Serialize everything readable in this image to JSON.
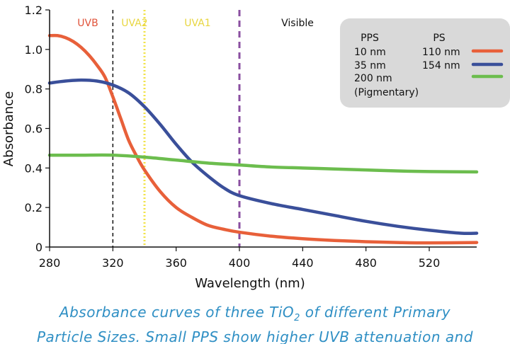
{
  "chart_data": {
    "type": "line",
    "xlabel": "Wavelength (nm)",
    "ylabel": "Absorbance",
    "xlim": [
      280,
      550
    ],
    "ylim": [
      0,
      1.2
    ],
    "xticks": [
      280,
      320,
      360,
      400,
      440,
      480,
      520
    ],
    "yticks": [
      "0",
      "0.2",
      "0.4",
      "0.6",
      "0.8",
      "1.0",
      "1.2"
    ],
    "grid": false,
    "legend_position": "top-right",
    "regions": [
      {
        "label": "UVB",
        "color": "#e0533a"
      },
      {
        "label": "UVA2",
        "color": "#e8d640"
      },
      {
        "label": "UVA1",
        "color": "#e8d640"
      },
      {
        "label": "Visible",
        "color": "#111111"
      }
    ],
    "boundaries": [
      {
        "x": 320,
        "color": "#111111",
        "style": "dashed"
      },
      {
        "x": 340,
        "color": "#f2e34a",
        "style": "dotted"
      },
      {
        "x": 400,
        "color": "#8a4fa0",
        "style": "dashed"
      }
    ],
    "legend": {
      "header_pps": "PPS",
      "header_ps": "PS",
      "rows": [
        {
          "pps": "10 nm",
          "ps": "110 nm",
          "color": "#e8603a"
        },
        {
          "pps": "35 nm",
          "ps": "154 nm",
          "color": "#3a4f9a"
        },
        {
          "pps": "200 nm",
          "pps2": "(Pigmentary)",
          "ps": "",
          "color": "#6cbd4e"
        }
      ]
    },
    "series": [
      {
        "color": "#e8603a",
        "x": [
          280,
          285,
          290,
          295,
          300,
          305,
          310,
          315,
          320,
          325,
          330,
          335,
          340,
          350,
          360,
          370,
          380,
          390,
          400,
          420,
          440,
          460,
          480,
          500,
          520,
          550
        ],
        "y": [
          1.07,
          1.07,
          1.06,
          1.04,
          1.01,
          0.97,
          0.92,
          0.86,
          0.76,
          0.65,
          0.54,
          0.46,
          0.39,
          0.28,
          0.2,
          0.15,
          0.11,
          0.09,
          0.075,
          0.055,
          0.042,
          0.033,
          0.027,
          0.023,
          0.021,
          0.023
        ]
      },
      {
        "color": "#3a4f9a",
        "x": [
          280,
          290,
          300,
          310,
          320,
          330,
          340,
          350,
          360,
          370,
          380,
          390,
          400,
          420,
          440,
          460,
          480,
          500,
          520,
          540,
          550
        ],
        "y": [
          0.83,
          0.84,
          0.845,
          0.84,
          0.82,
          0.78,
          0.71,
          0.62,
          0.52,
          0.43,
          0.36,
          0.3,
          0.26,
          0.22,
          0.19,
          0.16,
          0.13,
          0.105,
          0.085,
          0.07,
          0.07
        ]
      },
      {
        "color": "#6cbd4e",
        "x": [
          280,
          300,
          320,
          340,
          360,
          380,
          400,
          420,
          440,
          460,
          480,
          500,
          520,
          550
        ],
        "y": [
          0.465,
          0.465,
          0.465,
          0.455,
          0.44,
          0.425,
          0.415,
          0.405,
          0.4,
          0.395,
          0.39,
          0.385,
          0.382,
          0.38
        ]
      }
    ]
  },
  "caption": {
    "line1_pre": "Absorbance curves of three TiO",
    "line1_sub": "2",
    "line1_post": " of different Primary",
    "line2": "Particle Sizes. Small PPS show higher UVB attenuation and"
  }
}
